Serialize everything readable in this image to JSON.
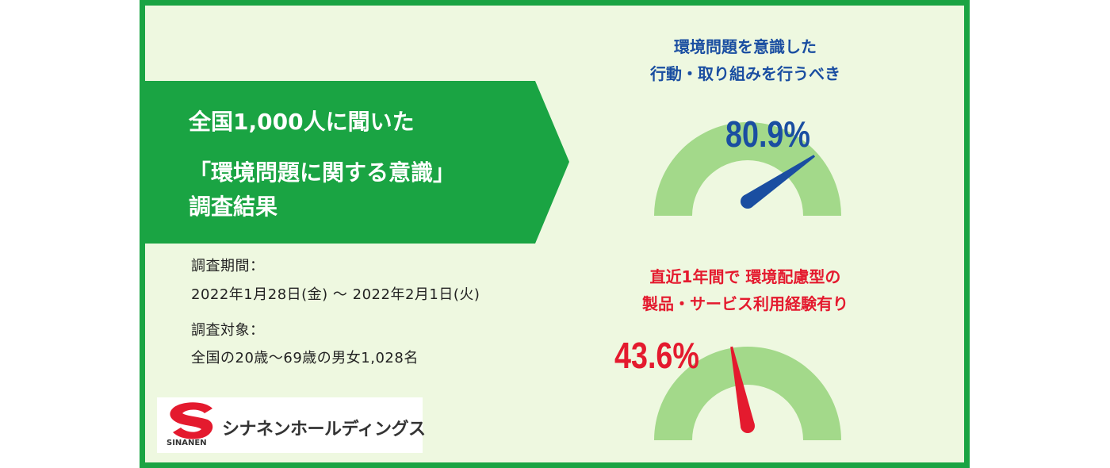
{
  "banner": {
    "line1": "全国1,000人に聞いた",
    "line2": "「環境問題に関する意識」",
    "line3": "調査結果"
  },
  "info": {
    "period_label": "調査期間：",
    "period_value": "2022年1月28日(金) 〜 2022年2月1日(火)",
    "target_label": "調査対象：",
    "target_value": "全国の20歳〜69歳の男女1,028名"
  },
  "gauge1": {
    "title_line1": "環境問題を意識した",
    "title_line2": "行動・取り組みを行うべき",
    "percent_text": "80.9%",
    "value": 80.9,
    "color": "#1a4ea1"
  },
  "gauge2": {
    "title_line1": "直近1年間で 環境配慮型の",
    "title_line2": "製品・サービス利用経験有り",
    "percent_text": "43.6%",
    "value": 43.6,
    "color": "#e41a2e"
  },
  "logo": {
    "name": "シナネンホールディングス",
    "sub": "SINANEN"
  },
  "colors": {
    "frame": "#1aa443",
    "background": "#eef8e0",
    "gauge_track": "#a3d98a"
  }
}
